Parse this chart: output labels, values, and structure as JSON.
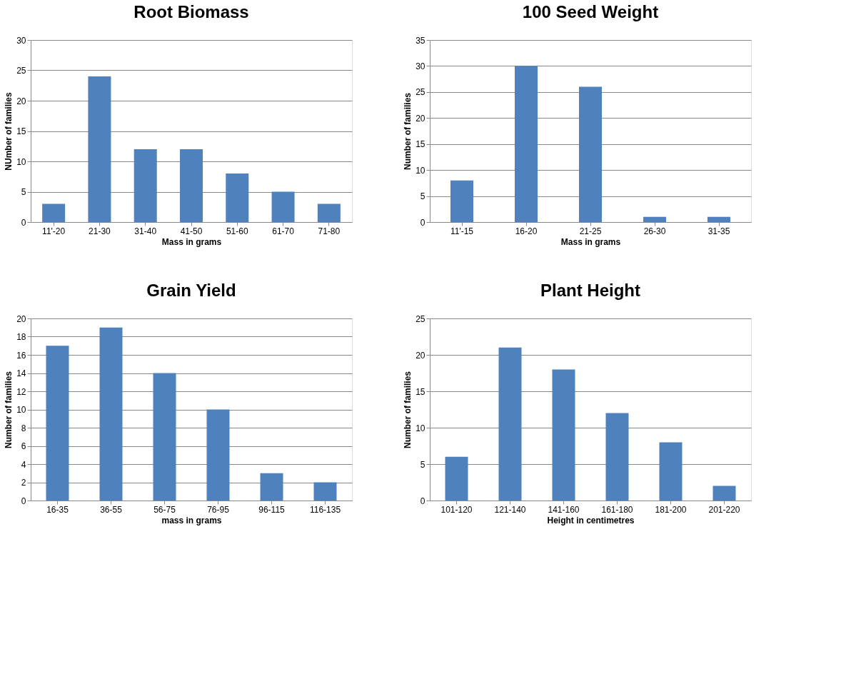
{
  "chart_data": [
    {
      "type": "bar",
      "title": "Root Biomass",
      "xlabel": "Mass in grams",
      "ylabel": "NUmber of families",
      "categories": [
        "11'-20",
        "21-30",
        "31-40",
        "41-50",
        "51-60",
        "61-70",
        "71-80"
      ],
      "values": [
        3,
        24,
        12,
        12,
        8,
        5,
        3
      ],
      "color": "#4f81bd",
      "ylim": [
        0,
        30
      ],
      "yticks": [
        0,
        5,
        10,
        15,
        20,
        25,
        30
      ],
      "grid": "y"
    },
    {
      "type": "bar",
      "title": "100 Seed Weight",
      "xlabel": "Mass in grams",
      "ylabel": "Number of families",
      "categories": [
        "11'-15",
        "16-20",
        "21-25",
        "26-30",
        "31-35"
      ],
      "values": [
        8,
        30,
        26,
        1,
        1
      ],
      "color": "#4f81bd",
      "ylim": [
        0,
        35
      ],
      "yticks": [
        0,
        5,
        10,
        15,
        20,
        25,
        30,
        35
      ],
      "grid": "y"
    },
    {
      "type": "bar",
      "title": "Grain Yield",
      "xlabel": "mass in grams",
      "ylabel": "Number of families",
      "categories": [
        "16-35",
        "36-55",
        "56-75",
        "76-95",
        "96-115",
        "116-135"
      ],
      "values": [
        17,
        19,
        14,
        10,
        3,
        2
      ],
      "color": "#4f81bd",
      "ylim": [
        0,
        20
      ],
      "yticks": [
        0,
        2,
        4,
        6,
        8,
        10,
        12,
        14,
        16,
        18,
        20
      ],
      "grid": "y"
    },
    {
      "type": "bar",
      "title": "Plant Height",
      "xlabel": "Height in centimetres",
      "ylabel": "Number of families",
      "categories": [
        "101-120",
        "121-140",
        "141-160",
        "161-180",
        "181-200",
        "201-220"
      ],
      "values": [
        6,
        21,
        18,
        12,
        8,
        2
      ],
      "color": "#4f81bd",
      "ylim": [
        0,
        25
      ],
      "yticks": [
        0,
        5,
        10,
        15,
        20,
        25
      ],
      "grid": "y"
    }
  ]
}
